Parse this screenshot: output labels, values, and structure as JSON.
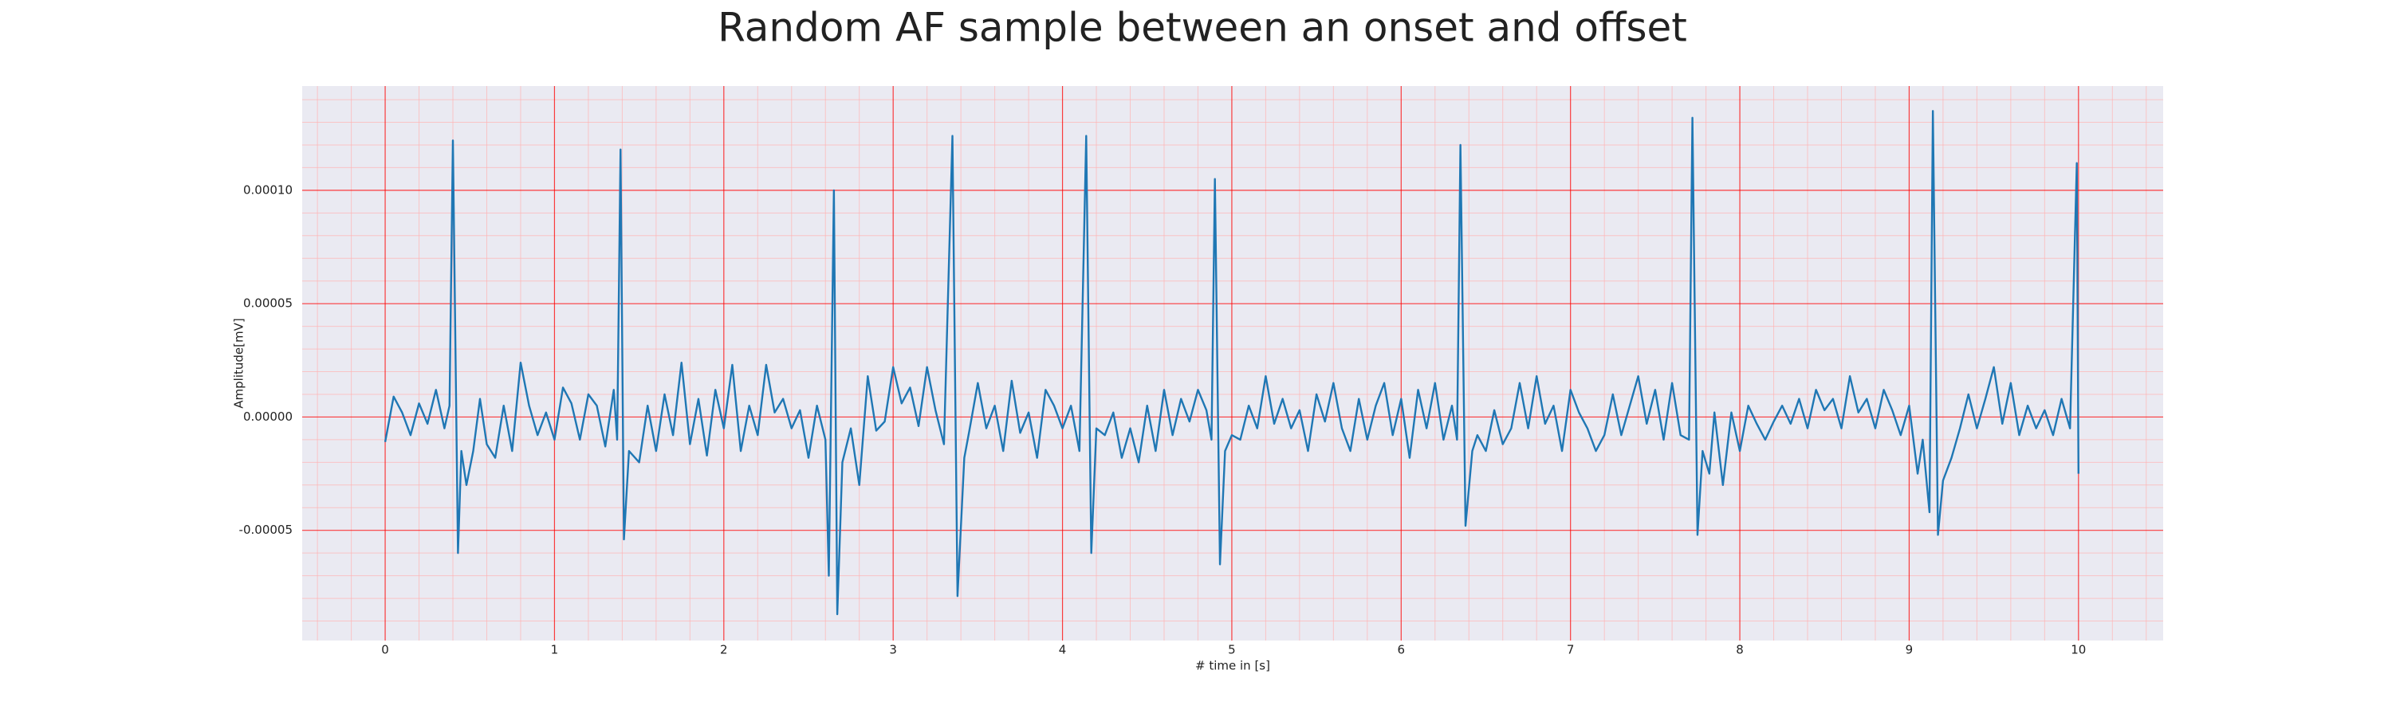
{
  "chart_data": {
    "type": "line",
    "title": "Random AF sample between an onset and offset",
    "xlabel": "# time in [s]",
    "ylabel": "Amplitude[mV]",
    "color": "#1f77b4",
    "background": "#eaeaf2",
    "grid": true,
    "grid_color": "#ff0000",
    "minor_grid": true,
    "minor_grid_color": "#ffb3b3",
    "xlim": [
      -0.49,
      10.5
    ],
    "ylim": [
      -9.86e-05,
      0.000146
    ],
    "xticks": [
      0,
      1,
      2,
      3,
      4,
      5,
      6,
      7,
      8,
      9,
      10
    ],
    "yticks": [
      {
        "value": -5e-05,
        "label": "-0.00005"
      },
      {
        "value": 0,
        "label": "0.00000"
      },
      {
        "value": 5e-05,
        "label": "0.00005"
      },
      {
        "value": 0.0001,
        "label": "0.00010"
      }
    ],
    "minor_xticks": [
      -0.4,
      -0.2,
      0.2,
      0.4,
      0.6,
      0.8,
      1.2,
      1.4,
      1.6,
      1.8,
      2.2,
      2.4,
      2.6,
      2.8,
      3.2,
      3.4,
      3.6,
      3.8,
      4.2,
      4.4,
      4.6,
      4.8,
      5.2,
      5.4,
      5.6,
      5.8,
      6.2,
      6.4,
      6.6,
      6.8,
      7.2,
      7.4,
      7.6,
      7.8,
      8.2,
      8.4,
      8.6,
      8.8,
      9.2,
      9.4,
      9.6,
      9.8,
      10.2,
      10.4
    ],
    "minor_yticks": [
      -9e-05,
      -8e-05,
      -7e-05,
      -6e-05,
      -4e-05,
      -3e-05,
      -2e-05,
      -1e-05,
      1e-05,
      2e-05,
      3e-05,
      4e-05,
      6e-05,
      7e-05,
      8e-05,
      9e-05,
      0.00011,
      0.00012,
      0.00013,
      0.00014
    ],
    "x": [
      0,
      0.05,
      0.1,
      0.15,
      0.2,
      0.25,
      0.3,
      0.35,
      0.38,
      0.4,
      0.43,
      0.45,
      0.48,
      0.52,
      0.56,
      0.6,
      0.65,
      0.7,
      0.75,
      0.8,
      0.85,
      0.9,
      0.95,
      1.0,
      1.05,
      1.1,
      1.15,
      1.2,
      1.25,
      1.3,
      1.35,
      1.37,
      1.39,
      1.41,
      1.44,
      1.5,
      1.55,
      1.6,
      1.65,
      1.7,
      1.75,
      1.8,
      1.85,
      1.9,
      1.95,
      2.0,
      2.05,
      2.1,
      2.15,
      2.2,
      2.25,
      2.3,
      2.35,
      2.4,
      2.45,
      2.5,
      2.55,
      2.6,
      2.62,
      2.65,
      2.67,
      2.7,
      2.75,
      2.8,
      2.85,
      2.9,
      2.95,
      3.0,
      3.05,
      3.1,
      3.15,
      3.2,
      3.25,
      3.3,
      3.35,
      3.38,
      3.42,
      3.45,
      3.5,
      3.55,
      3.6,
      3.65,
      3.7,
      3.75,
      3.8,
      3.85,
      3.9,
      3.95,
      4.0,
      4.05,
      4.1,
      4.14,
      4.17,
      4.2,
      4.25,
      4.3,
      4.35,
      4.4,
      4.45,
      4.5,
      4.55,
      4.6,
      4.65,
      4.7,
      4.75,
      4.8,
      4.85,
      4.88,
      4.9,
      4.93,
      4.96,
      5.0,
      5.05,
      5.1,
      5.15,
      5.2,
      5.25,
      5.3,
      5.35,
      5.4,
      5.45,
      5.5,
      5.55,
      5.6,
      5.65,
      5.7,
      5.75,
      5.8,
      5.85,
      5.9,
      5.95,
      6.0,
      6.05,
      6.1,
      6.15,
      6.2,
      6.25,
      6.3,
      6.33,
      6.35,
      6.38,
      6.42,
      6.45,
      6.5,
      6.55,
      6.6,
      6.65,
      6.7,
      6.75,
      6.8,
      6.85,
      6.9,
      6.95,
      7.0,
      7.05,
      7.1,
      7.15,
      7.2,
      7.25,
      7.3,
      7.35,
      7.4,
      7.45,
      7.5,
      7.55,
      7.6,
      7.65,
      7.7,
      7.72,
      7.75,
      7.78,
      7.82,
      7.85,
      7.9,
      7.95,
      8.0,
      8.05,
      8.1,
      8.15,
      8.2,
      8.25,
      8.3,
      8.35,
      8.4,
      8.45,
      8.5,
      8.55,
      8.6,
      8.65,
      8.7,
      8.75,
      8.8,
      8.85,
      8.9,
      8.95,
      9.0,
      9.05,
      9.08,
      9.12,
      9.14,
      9.17,
      9.2,
      9.25,
      9.3,
      9.35,
      9.4,
      9.45,
      9.5,
      9.55,
      9.6,
      9.65,
      9.7,
      9.75,
      9.8,
      9.85,
      9.9,
      9.95,
      9.99,
      10.0
    ],
    "values": [
      -1.1e-05,
      9e-06,
      2e-06,
      -8e-06,
      6e-06,
      -3e-06,
      1.2e-05,
      -5e-06,
      5e-06,
      0.000122,
      -6e-05,
      -1.5e-05,
      -3e-05,
      -1.5e-05,
      8e-06,
      -1.2e-05,
      -1.8e-05,
      5e-06,
      -1.5e-05,
      2.4e-05,
      5e-06,
      -8e-06,
      2e-06,
      -1e-05,
      1.3e-05,
      6e-06,
      -1e-05,
      1e-05,
      5e-06,
      -1.3e-05,
      1.2e-05,
      -1e-05,
      0.000118,
      -5.4e-05,
      -1.5e-05,
      -2e-05,
      5e-06,
      -1.5e-05,
      1e-05,
      -8e-06,
      2.4e-05,
      -1.2e-05,
      8e-06,
      -1.7e-05,
      1.2e-05,
      -5e-06,
      2.3e-05,
      -1.5e-05,
      5e-06,
      -8e-06,
      2.3e-05,
      2e-06,
      8e-06,
      -5e-06,
      3e-06,
      -1.8e-05,
      5e-06,
      -1e-05,
      -7e-05,
      0.0001,
      -8.7e-05,
      -2e-05,
      -5e-06,
      -3e-05,
      1.8e-05,
      -6e-06,
      -2e-06,
      2.2e-05,
      6e-06,
      1.3e-05,
      -4e-06,
      2.2e-05,
      3e-06,
      -1.2e-05,
      0.000124,
      -7.9e-05,
      -1.8e-05,
      -6e-06,
      1.5e-05,
      -5e-06,
      5e-06,
      -1.5e-05,
      1.6e-05,
      -7e-06,
      2e-06,
      -1.8e-05,
      1.2e-05,
      5e-06,
      -5e-06,
      5e-06,
      -1.5e-05,
      0.000124,
      -6e-05,
      -5e-06,
      -8e-06,
      2e-06,
      -1.8e-05,
      -5e-06,
      -2e-05,
      5e-06,
      -1.5e-05,
      1.2e-05,
      -8e-06,
      8e-06,
      -2e-06,
      1.2e-05,
      3e-06,
      -1e-05,
      0.000105,
      -6.5e-05,
      -1.5e-05,
      -8e-06,
      -1e-05,
      5e-06,
      -5e-06,
      1.8e-05,
      -3e-06,
      8e-06,
      -5e-06,
      3e-06,
      -1.5e-05,
      1e-05,
      -2e-06,
      1.5e-05,
      -5e-06,
      -1.5e-05,
      8e-06,
      -1e-05,
      5e-06,
      1.5e-05,
      -8e-06,
      8e-06,
      -1.8e-05,
      1.2e-05,
      -5e-06,
      1.5e-05,
      -1e-05,
      5e-06,
      -1e-05,
      0.00012,
      -4.8e-05,
      -1.5e-05,
      -8e-06,
      -1.5e-05,
      3e-06,
      -1.2e-05,
      -5e-06,
      1.5e-05,
      -5e-06,
      1.8e-05,
      -3e-06,
      5e-06,
      -1.5e-05,
      1.2e-05,
      2e-06,
      -5e-06,
      -1.5e-05,
      -8e-06,
      1e-05,
      -8e-06,
      5e-06,
      1.8e-05,
      -3e-06,
      1.2e-05,
      -1e-05,
      1.5e-05,
      -8e-06,
      -1e-05,
      0.000132,
      -5.2e-05,
      -1.5e-05,
      -2.5e-05,
      2e-06,
      -3e-05,
      2e-06,
      -1.5e-05,
      5e-06,
      -3e-06,
      -1e-05,
      -2e-06,
      5e-06,
      -3e-06,
      8e-06,
      -5e-06,
      1.2e-05,
      3e-06,
      8e-06,
      -5e-06,
      1.8e-05,
      2e-06,
      8e-06,
      -5e-06,
      1.2e-05,
      3e-06,
      -8e-06,
      5e-06,
      -2.5e-05,
      -1e-05,
      -4.2e-05,
      0.000135,
      -5.2e-05,
      -2.8e-05,
      -1.8e-05,
      -5e-06,
      1e-05,
      -5e-06,
      8e-06,
      2.2e-05,
      -3e-06,
      1.5e-05,
      -8e-06,
      5e-06,
      -5e-06,
      3e-06,
      -8e-06,
      8e-06,
      -5e-06,
      0.000112,
      -2.5e-05
    ]
  }
}
